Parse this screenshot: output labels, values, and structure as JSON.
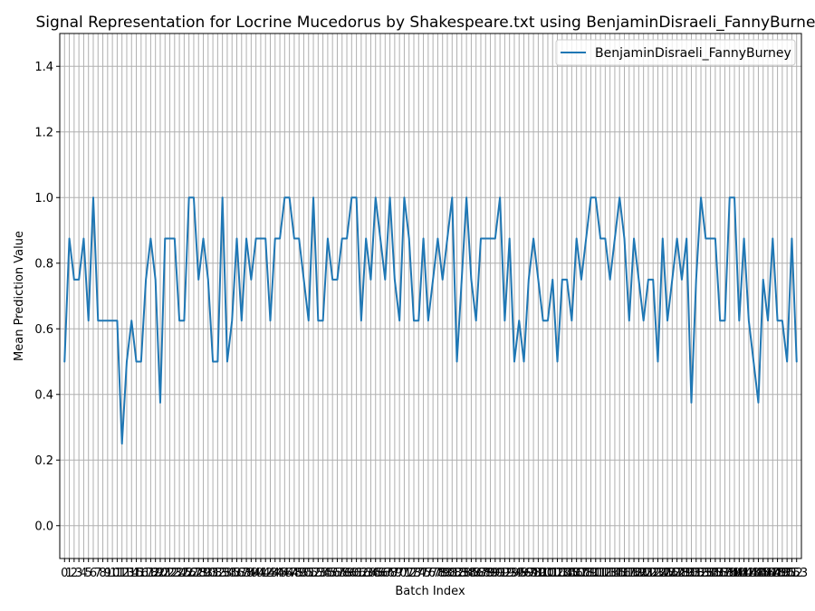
{
  "chart_data": {
    "type": "line",
    "title": "Signal Representation for Locrine Mucedorus by Shakespeare.txt using BenjaminDisraeli_FannyBurney",
    "xlabel": "Batch Index",
    "ylabel": "Mean Prediction Value",
    "ylim": [
      -0.1,
      1.5
    ],
    "xlim": [
      -1,
      154
    ],
    "yticks": [
      "0.0",
      "0.2",
      "0.4",
      "0.6",
      "0.8",
      "1.0",
      "1.2",
      "1.4"
    ],
    "ytick_values": [
      0.0,
      0.2,
      0.4,
      0.6,
      0.8,
      1.0,
      1.2,
      1.4
    ],
    "x_count": 154,
    "grid": true,
    "legend_position": "upper right",
    "series": [
      {
        "name": "BenjaminDisraeli_FannyBurney",
        "color": "#1f77b4",
        "values": [
          0.5,
          0.875,
          0.75,
          0.75,
          0.875,
          0.625,
          1.0,
          0.625,
          0.625,
          0.625,
          0.625,
          0.625,
          0.25,
          0.5,
          0.625,
          0.5,
          0.5,
          0.75,
          0.875,
          0.75,
          0.375,
          0.875,
          0.875,
          0.875,
          0.625,
          0.625,
          1.0,
          1.0,
          0.75,
          0.875,
          0.75,
          0.5,
          0.5,
          1.0,
          0.5,
          0.625,
          0.875,
          0.625,
          0.875,
          0.75,
          0.875,
          0.875,
          0.875,
          0.625,
          0.875,
          0.875,
          1.0,
          1.0,
          0.875,
          0.875,
          0.75,
          0.625,
          1.0,
          0.625,
          0.625,
          0.875,
          0.75,
          0.75,
          0.875,
          0.875,
          1.0,
          1.0,
          0.625,
          0.875,
          0.75,
          1.0,
          0.875,
          0.75,
          1.0,
          0.75,
          0.625,
          1.0,
          0.875,
          0.625,
          0.625,
          0.875,
          0.625,
          0.75,
          0.875,
          0.75,
          0.875,
          1.0,
          0.5,
          0.75,
          1.0,
          0.75,
          0.625,
          0.875,
          0.875,
          0.875,
          0.875,
          1.0,
          0.625,
          0.875,
          0.5,
          0.625,
          0.5,
          0.75,
          0.875,
          0.75,
          0.625,
          0.625,
          0.75,
          0.5,
          0.75,
          0.75,
          0.625,
          0.875,
          0.75,
          0.875,
          1.0,
          1.0,
          0.875,
          0.875,
          0.75,
          0.875,
          1.0,
          0.875,
          0.625,
          0.875,
          0.75,
          0.625,
          0.75,
          0.75,
          0.5,
          0.875,
          0.625,
          0.75,
          0.875,
          0.75,
          0.875,
          0.375,
          0.75,
          1.0,
          0.875,
          0.875,
          0.875,
          0.625,
          0.625,
          1.0,
          1.0,
          0.625,
          0.875,
          0.625,
          0.5,
          0.375,
          0.75,
          0.625,
          0.875,
          0.625,
          0.625,
          0.5,
          0.875,
          0.5
        ]
      }
    ]
  }
}
